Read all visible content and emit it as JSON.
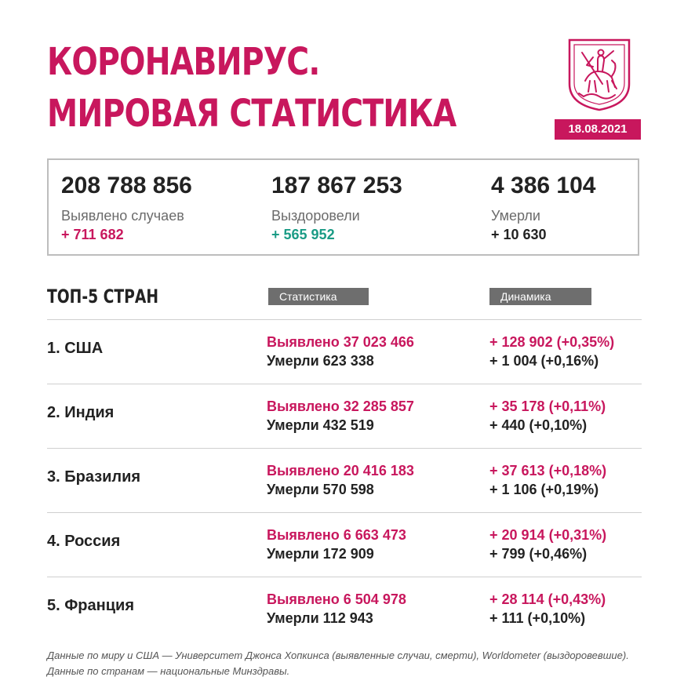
{
  "header": {
    "title_line1": "КОРОНАВИРУС.",
    "title_line2": "МИРОВАЯ СТАТИСТИКА",
    "date": "18.08.2021",
    "accent_color": "#c8175d"
  },
  "summary": [
    {
      "value": "208 788 856",
      "label": "Выявлено случаев",
      "delta": "+ 711 682",
      "delta_color": "#c8175d"
    },
    {
      "value": "187 867 253",
      "label": "Выздоровели",
      "delta": "+ 565 952",
      "delta_color": "#1a9b85"
    },
    {
      "value": "4 386 104",
      "label": "Умерли",
      "delta": "+ 10 630",
      "delta_color": "#222222"
    }
  ],
  "table": {
    "heading": "ТОП-5 СТРАН",
    "col_stats": "Статистика",
    "col_dynamics": "Динамика",
    "rows": [
      {
        "country": "1. США",
        "detected": "Выявлено 37 023 466",
        "died": "Умерли 623 338",
        "delta_detected": "+ 128 902 (+0,35%)",
        "delta_died": "+ 1 004 (+0,16%)"
      },
      {
        "country": "2. Индия",
        "detected": "Выявлено 32 285 857",
        "died": "Умерли 432 519",
        "delta_detected": "+ 35 178 (+0,11%)",
        "delta_died": "+ 440 (+0,10%)"
      },
      {
        "country": "3. Бразилия",
        "detected": "Выявлено 20 416 183",
        "died": "Умерли 570 598",
        "delta_detected": "+ 37 613 (+0,18%)",
        "delta_died": "+ 1 106 (+0,19%)"
      },
      {
        "country": "4. Россия",
        "detected": "Выявлено 6 663 473",
        "died": "Умерли 172 909",
        "delta_detected": "+ 20 914 (+0,31%)",
        "delta_died": "+ 799 (+0,46%)"
      },
      {
        "country": "5. Франция",
        "detected": "Выявлено 6 504 978",
        "died": "Умерли 112 943",
        "delta_detected": "+ 28 114 (+0,43%)",
        "delta_died": "+ 111 (+0,10%)"
      }
    ]
  },
  "footnote": "Данные по миру и США — Университет Джонса Хопкинса (выявленные случаи, смерти), Worldometer (выздоровевшие). Данные по странам — национальные Минздравы."
}
